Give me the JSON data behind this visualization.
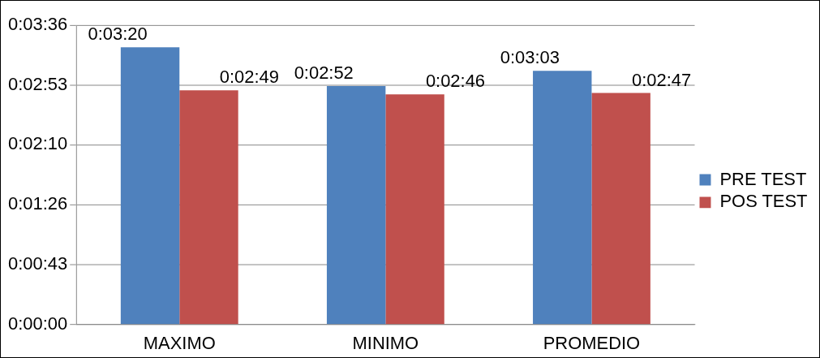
{
  "chart_data": {
    "type": "bar",
    "categories": [
      "MAXIMO",
      "MINIMO",
      "PROMEDIO"
    ],
    "series": [
      {
        "name": "PRE TEST",
        "color": "#4f81bd",
        "values": [
          200,
          172,
          183
        ],
        "value_labels": [
          "0:03:20",
          "0:02:52",
          "0:03:03"
        ]
      },
      {
        "name": "POS TEST",
        "color": "#c0504d",
        "values": [
          169,
          166,
          167
        ],
        "value_labels": [
          "0:02:49",
          "0:02:46",
          "0:02:47"
        ]
      }
    ],
    "ylim": [
      0,
      216
    ],
    "yticks": [
      {
        "value": 0,
        "label": "0:00:00"
      },
      {
        "value": 43.2,
        "label": "0:00:43"
      },
      {
        "value": 86.4,
        "label": "0:01:26"
      },
      {
        "value": 129.6,
        "label": "0:02:10"
      },
      {
        "value": 172.8,
        "label": "0:02:53"
      },
      {
        "value": 216,
        "label": "0:03:36"
      }
    ],
    "grid": "y",
    "legend": "right"
  }
}
